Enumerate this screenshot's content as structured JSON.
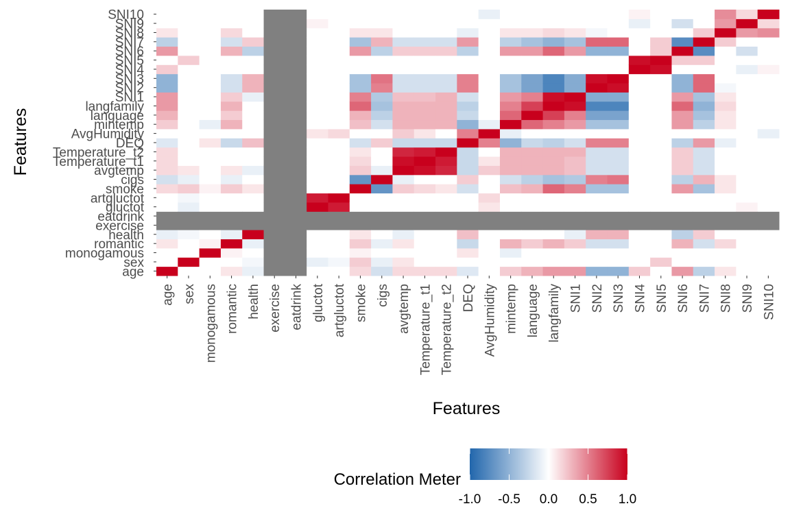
{
  "chart_data": {
    "type": "heatmap",
    "title": "",
    "xlabel": "Features",
    "ylabel": "Features",
    "legend": {
      "title": "Correlation Meter",
      "placement": "bottom",
      "colors": [
        "#2166ac",
        "#ffffff",
        "#c8001d"
      ],
      "ticks": [
        "-1.0",
        "-0.5",
        "0.0",
        "0.5",
        "1.0"
      ],
      "range": [
        -1,
        1
      ]
    },
    "na_color": "#808080",
    "na_features": [
      "exercise",
      "eatdrink"
    ],
    "features": [
      "age",
      "sex",
      "monogamous",
      "romantic",
      "health",
      "exercise",
      "eatdrink",
      "gluctot",
      "artgluctot",
      "smoke",
      "cigs",
      "avgtemp",
      "Temperature_t1",
      "Temperature_t2",
      "DEQ",
      "AvgHumidity",
      "mintemp",
      "language",
      "langfamily",
      "SNI1",
      "SNI2",
      "SNI3",
      "SNI4",
      "SNI5",
      "SNI6",
      "SNI7",
      "SNI8",
      "SNI9",
      "SNI10"
    ],
    "correlations": [
      [
        "age",
        "romantic",
        0.1
      ],
      [
        "age",
        "health",
        -0.1
      ],
      [
        "age",
        "smoke",
        0.15
      ],
      [
        "age",
        "cigs",
        -0.2
      ],
      [
        "age",
        "avgtemp",
        0.15
      ],
      [
        "age",
        "Temperature_t1",
        0.15
      ],
      [
        "age",
        "Temperature_t2",
        0.15
      ],
      [
        "age",
        "DEQ",
        -0.15
      ],
      [
        "age",
        "mintemp",
        0.2
      ],
      [
        "age",
        "language",
        0.3
      ],
      [
        "age",
        "langfamily",
        0.4
      ],
      [
        "age",
        "SNI1",
        0.4
      ],
      [
        "age",
        "SNI2",
        -0.5
      ],
      [
        "age",
        "SNI3",
        -0.5
      ],
      [
        "age",
        "SNI4",
        0.2
      ],
      [
        "age",
        "SNI6",
        0.4
      ],
      [
        "age",
        "SNI7",
        -0.3
      ],
      [
        "age",
        "SNI8",
        0.1
      ],
      [
        "sex",
        "health",
        -0.05
      ],
      [
        "sex",
        "gluctot",
        -0.1
      ],
      [
        "sex",
        "artgluctot",
        -0.05
      ],
      [
        "sex",
        "smoke",
        0.2
      ],
      [
        "sex",
        "cigs",
        -0.1
      ],
      [
        "sex",
        "avgtemp",
        0.1
      ],
      [
        "sex",
        "SNI5",
        0.2
      ],
      [
        "monogamous",
        "romantic",
        0.05
      ],
      [
        "monogamous",
        "smoke",
        0.05
      ],
      [
        "monogamous",
        "DEQ",
        0.1
      ],
      [
        "monogamous",
        "mintemp",
        -0.1
      ],
      [
        "romantic",
        "health",
        -0.1
      ],
      [
        "romantic",
        "smoke",
        0.2
      ],
      [
        "romantic",
        "cigs",
        -0.1
      ],
      [
        "romantic",
        "avgtemp",
        0.1
      ],
      [
        "romantic",
        "DEQ",
        -0.25
      ],
      [
        "romantic",
        "mintemp",
        0.3
      ],
      [
        "romantic",
        "language",
        0.2
      ],
      [
        "romantic",
        "langfamily",
        0.3
      ],
      [
        "romantic",
        "SNI1",
        0.2
      ],
      [
        "romantic",
        "SNI2",
        -0.2
      ],
      [
        "romantic",
        "SNI3",
        -0.2
      ],
      [
        "romantic",
        "SNI6",
        0.3
      ],
      [
        "romantic",
        "SNI7",
        -0.2
      ],
      [
        "romantic",
        "SNI8",
        0.15
      ],
      [
        "health",
        "smoke",
        0.1
      ],
      [
        "health",
        "avgtemp",
        -0.1
      ],
      [
        "health",
        "DEQ",
        0.25
      ],
      [
        "health",
        "SNI1",
        -0.1
      ],
      [
        "health",
        "SNI2",
        0.3
      ],
      [
        "health",
        "SNI3",
        0.3
      ],
      [
        "health",
        "SNI6",
        -0.3
      ],
      [
        "health",
        "SNI7",
        0.2
      ],
      [
        "gluctot",
        "artgluctot",
        0.9
      ],
      [
        "gluctot",
        "AvgHumidity",
        0.1
      ],
      [
        "gluctot",
        "SNI9",
        0.05
      ],
      [
        "artgluctot",
        "AvgHumidity",
        0.15
      ],
      [
        "smoke",
        "cigs",
        -0.7
      ],
      [
        "smoke",
        "avgtemp",
        0.2
      ],
      [
        "smoke",
        "Temperature_t1",
        0.15
      ],
      [
        "smoke",
        "Temperature_t2",
        0.1
      ],
      [
        "smoke",
        "DEQ",
        -0.2
      ],
      [
        "smoke",
        "mintemp",
        0.25
      ],
      [
        "smoke",
        "language",
        0.3
      ],
      [
        "smoke",
        "langfamily",
        0.6
      ],
      [
        "smoke",
        "SNI1",
        0.5
      ],
      [
        "smoke",
        "SNI2",
        -0.4
      ],
      [
        "smoke",
        "SNI3",
        -0.4
      ],
      [
        "smoke",
        "SNI6",
        0.4
      ],
      [
        "smoke",
        "SNI7",
        -0.4
      ],
      [
        "smoke",
        "SNI8",
        0.1
      ],
      [
        "cigs",
        "avgtemp",
        -0.1
      ],
      [
        "cigs",
        "DEQ",
        0.2
      ],
      [
        "cigs",
        "mintemp",
        -0.2
      ],
      [
        "cigs",
        "language",
        -0.3
      ],
      [
        "cigs",
        "langfamily",
        -0.4
      ],
      [
        "cigs",
        "SNI1",
        -0.35
      ],
      [
        "cigs",
        "SNI2",
        0.5
      ],
      [
        "cigs",
        "SNI3",
        0.55
      ],
      [
        "cigs",
        "SNI6",
        -0.3
      ],
      [
        "cigs",
        "SNI7",
        0.3
      ],
      [
        "cigs",
        "SNI8",
        0.1
      ],
      [
        "avgtemp",
        "Temperature_t1",
        0.95
      ],
      [
        "avgtemp",
        "Temperature_t2",
        0.85
      ],
      [
        "avgtemp",
        "DEQ",
        -0.25
      ],
      [
        "avgtemp",
        "AvgHumidity",
        0.2
      ],
      [
        "avgtemp",
        "mintemp",
        0.3
      ],
      [
        "avgtemp",
        "language",
        0.3
      ],
      [
        "avgtemp",
        "langfamily",
        0.3
      ],
      [
        "avgtemp",
        "SNI1",
        0.25
      ],
      [
        "avgtemp",
        "SNI2",
        -0.2
      ],
      [
        "avgtemp",
        "SNI3",
        -0.2
      ],
      [
        "avgtemp",
        "SNI6",
        0.2
      ],
      [
        "avgtemp",
        "SNI7",
        -0.2
      ],
      [
        "Temperature_t1",
        "Temperature_t2",
        0.9
      ],
      [
        "Temperature_t1",
        "DEQ",
        -0.25
      ],
      [
        "Temperature_t1",
        "AvgHumidity",
        0.1
      ],
      [
        "Temperature_t1",
        "mintemp",
        0.3
      ],
      [
        "Temperature_t1",
        "language",
        0.3
      ],
      [
        "Temperature_t1",
        "langfamily",
        0.3
      ],
      [
        "Temperature_t1",
        "SNI1",
        0.25
      ],
      [
        "Temperature_t1",
        "SNI2",
        -0.2
      ],
      [
        "Temperature_t1",
        "SNI3",
        -0.2
      ],
      [
        "Temperature_t1",
        "SNI6",
        0.2
      ],
      [
        "Temperature_t1",
        "SNI7",
        -0.2
      ],
      [
        "Temperature_t2",
        "DEQ",
        -0.25
      ],
      [
        "Temperature_t2",
        "mintemp",
        0.3
      ],
      [
        "Temperature_t2",
        "language",
        0.3
      ],
      [
        "Temperature_t2",
        "langfamily",
        0.3
      ],
      [
        "Temperature_t2",
        "SNI1",
        0.3
      ],
      [
        "Temperature_t2",
        "SNI2",
        -0.2
      ],
      [
        "Temperature_t2",
        "SNI3",
        -0.2
      ],
      [
        "Temperature_t2",
        "SNI6",
        0.2
      ],
      [
        "Temperature_t2",
        "SNI7",
        -0.2
      ],
      [
        "DEQ",
        "AvgHumidity",
        0.5
      ],
      [
        "DEQ",
        "mintemp",
        -0.5
      ],
      [
        "DEQ",
        "language",
        -0.25
      ],
      [
        "DEQ",
        "langfamily",
        -0.3
      ],
      [
        "DEQ",
        "SNI1",
        -0.2
      ],
      [
        "DEQ",
        "SNI2",
        0.5
      ],
      [
        "DEQ",
        "SNI3",
        0.5
      ],
      [
        "DEQ",
        "SNI6",
        -0.3
      ],
      [
        "DEQ",
        "SNI7",
        0.4
      ],
      [
        "DEQ",
        "SNI8",
        -0.1
      ],
      [
        "AvgHumidity",
        "mintemp",
        -0.1
      ],
      [
        "AvgHumidity",
        "SNI10",
        -0.1
      ],
      [
        "mintemp",
        "language",
        0.6
      ],
      [
        "mintemp",
        "langfamily",
        0.5
      ],
      [
        "mintemp",
        "SNI1",
        0.4
      ],
      [
        "mintemp",
        "SNI2",
        -0.4
      ],
      [
        "mintemp",
        "SNI3",
        -0.4
      ],
      [
        "mintemp",
        "SNI6",
        0.4
      ],
      [
        "mintemp",
        "SNI7",
        -0.3
      ],
      [
        "mintemp",
        "SNI8",
        0.1
      ],
      [
        "language",
        "langfamily",
        0.75
      ],
      [
        "language",
        "SNI1",
        0.5
      ],
      [
        "language",
        "SNI2",
        -0.6
      ],
      [
        "language",
        "SNI3",
        -0.6
      ],
      [
        "language",
        "SNI6",
        0.4
      ],
      [
        "language",
        "SNI7",
        -0.4
      ],
      [
        "language",
        "SNI8",
        0.1
      ],
      [
        "langfamily",
        "SNI1",
        0.95
      ],
      [
        "langfamily",
        "SNI2",
        -0.8
      ],
      [
        "langfamily",
        "SNI3",
        -0.8
      ],
      [
        "langfamily",
        "SNI6",
        0.6
      ],
      [
        "langfamily",
        "SNI7",
        -0.5
      ],
      [
        "langfamily",
        "SNI8",
        0.15
      ],
      [
        "SNI1",
        "SNI2",
        -0.55
      ],
      [
        "SNI1",
        "SNI3",
        -0.55
      ],
      [
        "SNI1",
        "SNI6",
        0.4
      ],
      [
        "SNI1",
        "SNI7",
        -0.4
      ],
      [
        "SNI1",
        "SNI8",
        0.1
      ],
      [
        "SNI2",
        "SNI3",
        0.95
      ],
      [
        "SNI2",
        "SNI6",
        -0.5
      ],
      [
        "SNI2",
        "SNI7",
        0.6
      ],
      [
        "SNI2",
        "SNI8",
        -0.05
      ],
      [
        "SNI3",
        "SNI6",
        -0.5
      ],
      [
        "SNI3",
        "SNI7",
        0.6
      ],
      [
        "SNI4",
        "SNI5",
        0.95
      ],
      [
        "SNI4",
        "SNI9",
        -0.1
      ],
      [
        "SNI4",
        "SNI10",
        0.05
      ],
      [
        "SNI5",
        "SNI6",
        0.2
      ],
      [
        "SNI5",
        "SNI7",
        0.2
      ],
      [
        "SNI6",
        "SNI7",
        -0.75
      ],
      [
        "SNI6",
        "SNI9",
        -0.2
      ],
      [
        "SNI7",
        "SNI8",
        0.2
      ],
      [
        "SNI8",
        "SNI9",
        0.4
      ],
      [
        "SNI8",
        "SNI10",
        0.45
      ],
      [
        "SNI9",
        "SNI10",
        0.15
      ]
    ]
  }
}
